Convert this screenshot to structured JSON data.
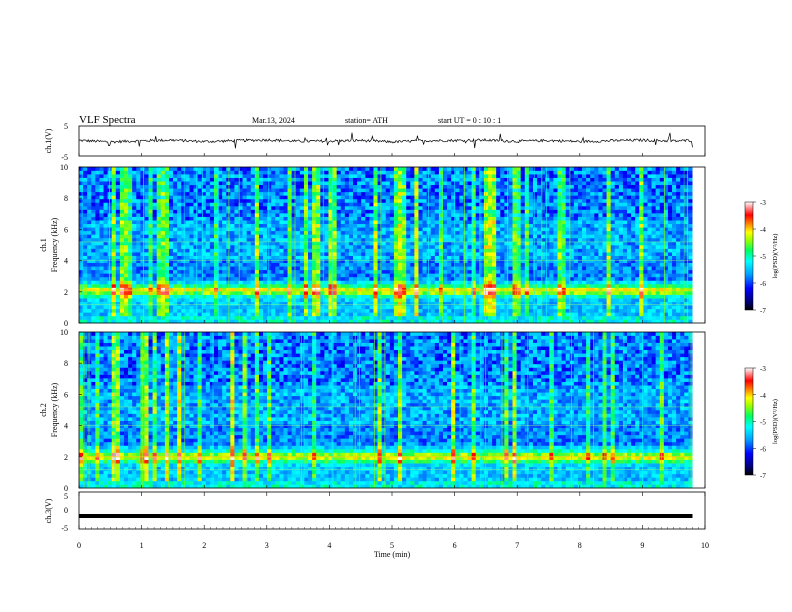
{
  "header": {
    "title": "VLF  Spectra",
    "date": "Mar.13, 2024",
    "station": "station= ATH",
    "start_ut": "start  UT  =    0  : 10 : 1"
  },
  "chart_data": [
    {
      "type": "line",
      "panel": "ch1_waveform",
      "ylabel": "ch.1(V)",
      "ylim": [
        -5,
        5
      ],
      "ytick_labels": [
        "5",
        "-5"
      ],
      "x": [
        0,
        0.5,
        1,
        1.5,
        2,
        2.5,
        3,
        3.5,
        4,
        4.5,
        5,
        5.5,
        6,
        6.5,
        7,
        7.5,
        8,
        8.5,
        9,
        9.5,
        9.8
      ],
      "y": [
        0.2,
        -0.3,
        0.1,
        0.3,
        -0.2,
        0.1,
        0.4,
        -0.1,
        0.0,
        0.2,
        -0.3,
        0.1,
        0.2,
        0.3,
        -0.1,
        0.2,
        -0.2,
        0.1,
        0.3,
        0.0,
        0.2
      ]
    },
    {
      "type": "heatmap",
      "panel": "ch1_spectrogram",
      "ylabel_channel": "ch.1",
      "ylabel": "Frequency  (kHz)",
      "ylim": [
        0,
        10
      ],
      "ytick_labels": [
        "0",
        "2",
        "4",
        "6",
        "8",
        "10"
      ],
      "xlim": [
        0,
        9.8
      ],
      "band_center_khz": 2.1,
      "colorbar": {
        "label": "log(PSD)(V²/Hz)",
        "ticks": [
          "-3",
          "-4",
          "-5",
          "-6",
          "-7"
        ],
        "range": [
          -7,
          -3
        ]
      }
    },
    {
      "type": "heatmap",
      "panel": "ch2_spectrogram",
      "ylabel_channel": "ch.2",
      "ylabel": "Frequency  (kHz)",
      "ylim": [
        0,
        10
      ],
      "ytick_labels": [
        "0",
        "2",
        "4",
        "6",
        "8",
        "10"
      ],
      "xlim": [
        0,
        9.8
      ],
      "band_center_khz": 2.0,
      "colorbar": {
        "label": "log(PSD)(V²/Hz)",
        "ticks": [
          "-3",
          "-4",
          "-5",
          "-6",
          "-7"
        ],
        "range": [
          -7,
          -3
        ]
      }
    },
    {
      "type": "line",
      "panel": "ch3_waveform",
      "ylabel": "ch.3(V)",
      "ylim": [
        -5,
        5
      ],
      "ytick_labels": [
        "5",
        "0",
        "-5"
      ],
      "x": [
        0,
        9.8
      ],
      "y": [
        -1.5,
        -1.5
      ],
      "xlabel": "Time  (min)",
      "xlim": [
        0,
        10
      ],
      "xtick_labels": [
        "0",
        "1",
        "2",
        "3",
        "4",
        "5",
        "6",
        "7",
        "8",
        "9",
        "10"
      ]
    }
  ],
  "colors": {
    "colormap": [
      "#000080",
      "#0000ff",
      "#00a0ff",
      "#00ffff",
      "#00ff80",
      "#00ff00",
      "#a0ff00",
      "#ffff00",
      "#ff8000",
      "#ff0000",
      "#ff8080",
      "#ffffff"
    ],
    "trace": "#000000",
    "axis": "#000000"
  }
}
